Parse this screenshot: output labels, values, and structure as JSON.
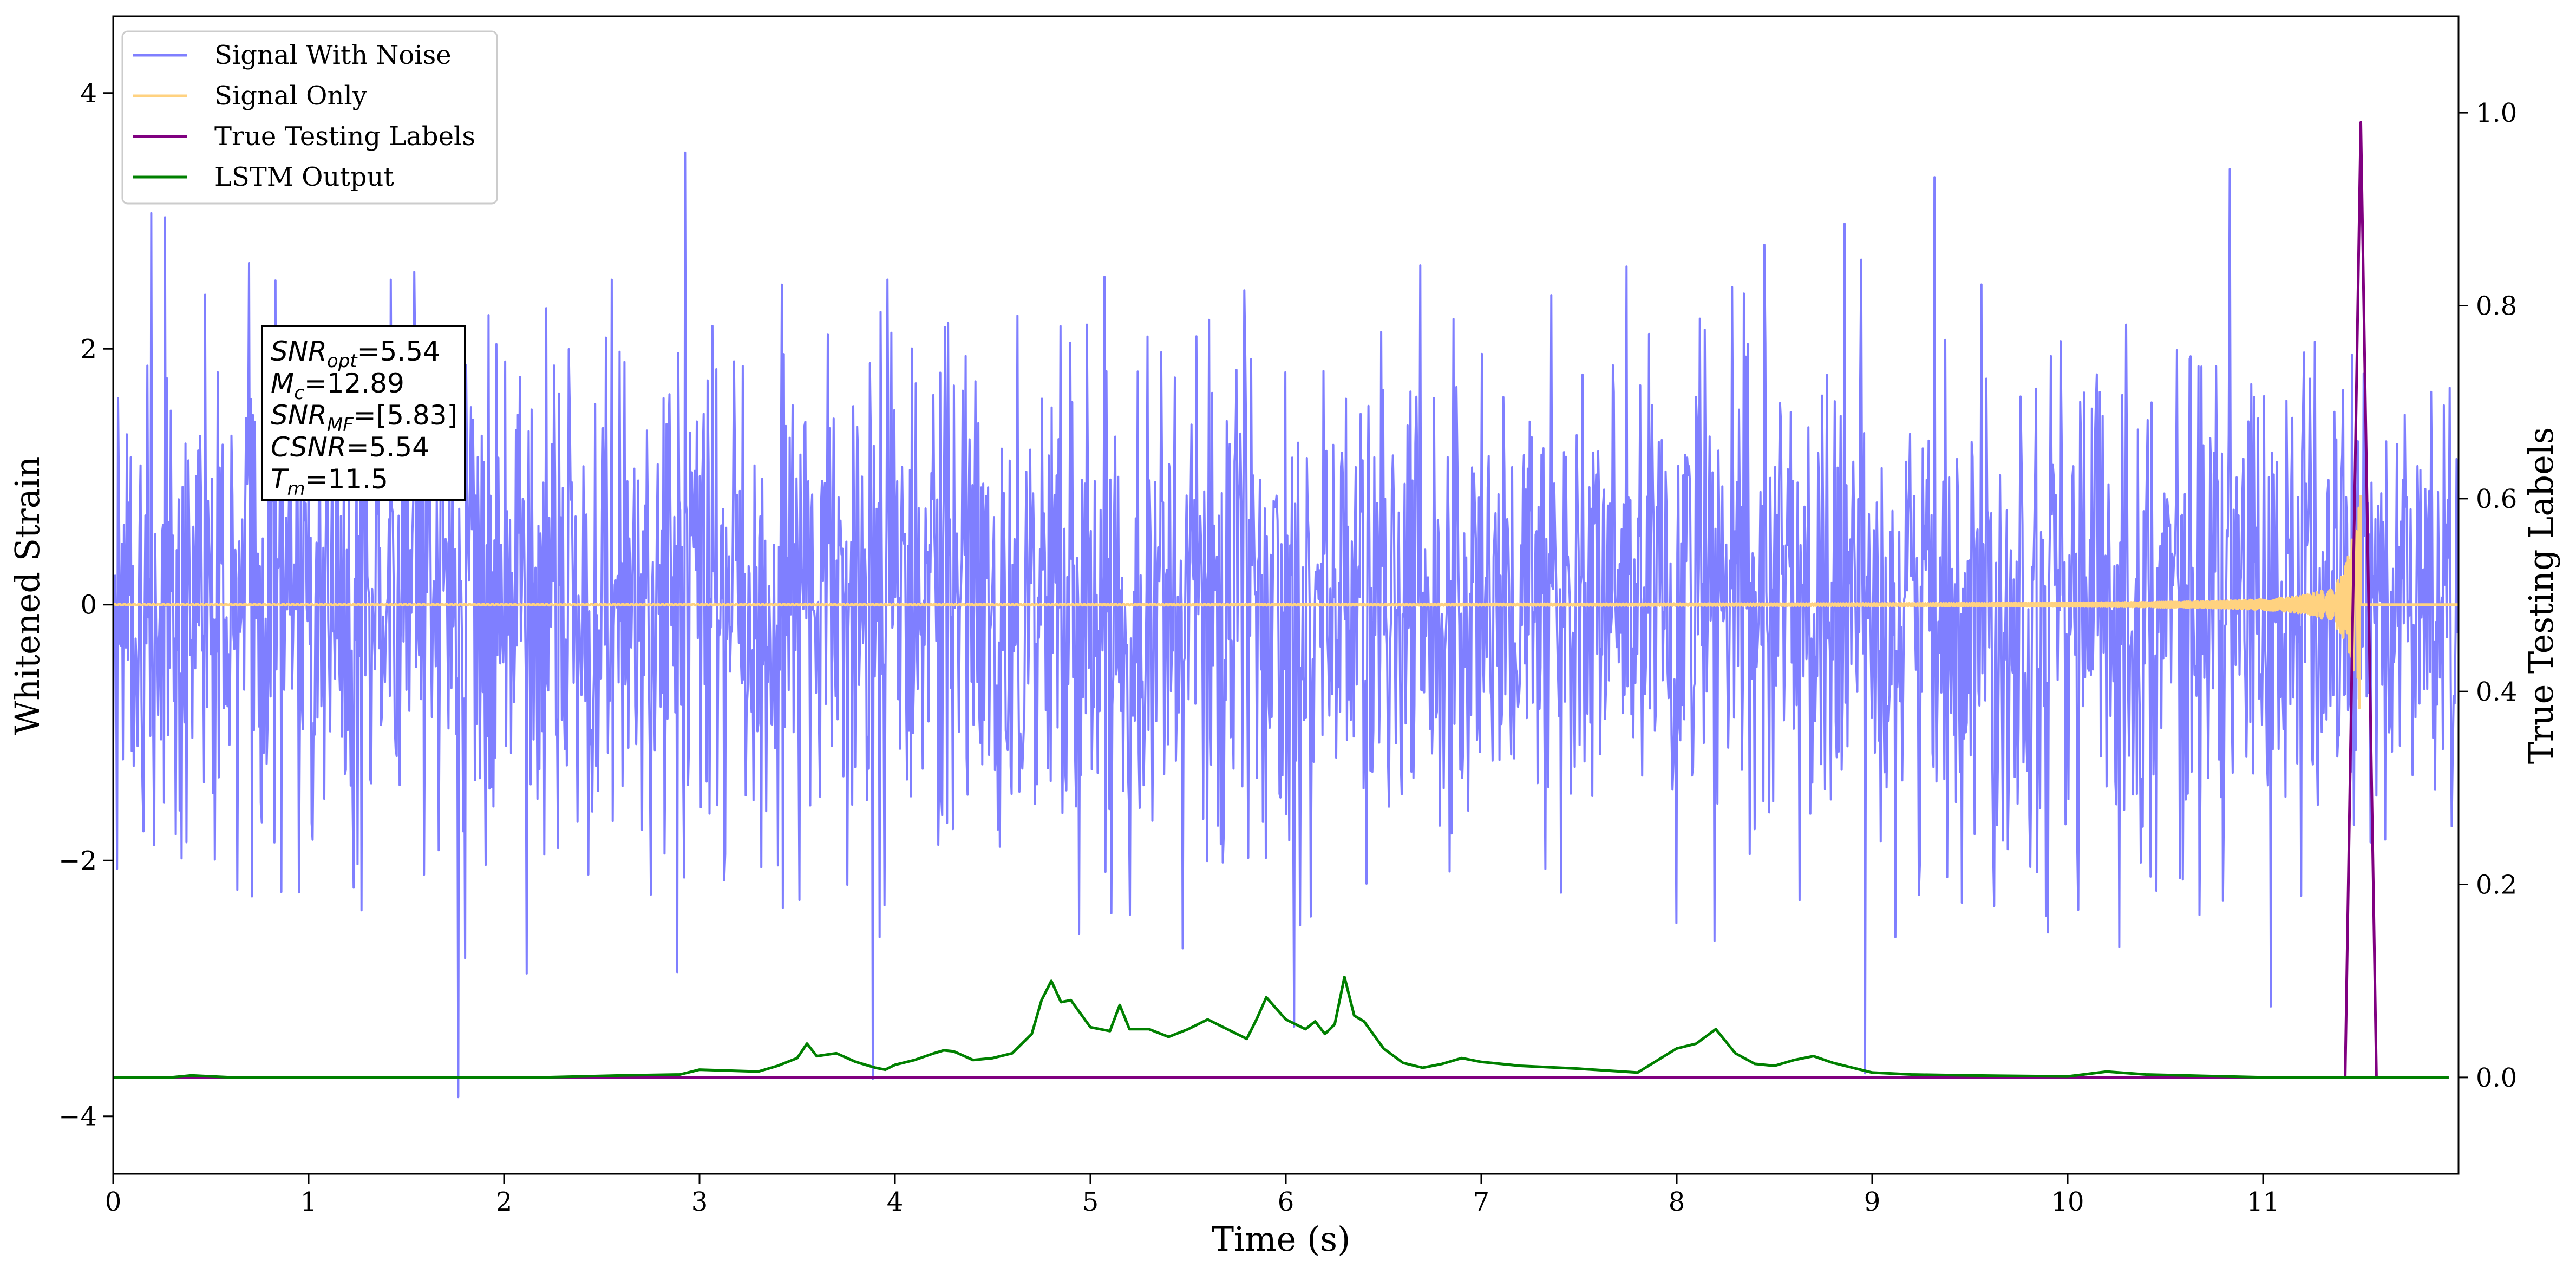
{
  "chart_data": {
    "type": "line",
    "xlabel": "Time (s)",
    "ylabel_left": "Whitened Strain",
    "ylabel_right": "True Testing Labels",
    "xlim": [
      0,
      12
    ],
    "ylim_left": [
      -4.45,
      4.6
    ],
    "ylim_right": [
      -0.1,
      1.1
    ],
    "x_ticks": [
      0,
      1,
      2,
      3,
      4,
      5,
      6,
      7,
      8,
      9,
      10,
      11
    ],
    "y_left_ticks": [
      4,
      2,
      0,
      -2,
      -4
    ],
    "y_left_tick_labels": [
      "4",
      "2",
      "0",
      "−2",
      "−4"
    ],
    "y_right_ticks": [
      1.0,
      0.8,
      0.6,
      0.4,
      0.2,
      0.0
    ],
    "y_right_tick_labels": [
      "1.0",
      "0.8",
      "0.6",
      "0.4",
      "0.2",
      "0.0"
    ],
    "grid": false,
    "legend_position": "top-left",
    "series": [
      {
        "name": "Signal With Noise",
        "color": "#7f7fff",
        "axis": "left",
        "style": "noise",
        "std": 1.0,
        "x_range": [
          0,
          12
        ],
        "n_points": 2400
      },
      {
        "name": "Signal Only",
        "color": "#ffd280",
        "axis": "left",
        "style": "chirp",
        "x_range": [
          0,
          11.5
        ],
        "peak_amplitude": 0.95
      },
      {
        "name": "True Testing Labels",
        "color": "#800080",
        "axis": "right",
        "x": [
          0,
          11.42,
          11.5,
          11.58,
          11.95
        ],
        "y": [
          0.0,
          0.0,
          0.99,
          0.0,
          0.0
        ]
      },
      {
        "name": "LSTM Output",
        "color": "#008000",
        "axis": "right",
        "x": [
          0,
          0.3,
          0.4,
          0.6,
          2.2,
          2.6,
          2.9,
          3.0,
          3.3,
          3.4,
          3.5,
          3.55,
          3.6,
          3.7,
          3.8,
          3.9,
          3.95,
          4.0,
          4.1,
          4.2,
          4.25,
          4.3,
          4.4,
          4.5,
          4.6,
          4.7,
          4.75,
          4.8,
          4.85,
          4.9,
          5.0,
          5.1,
          5.15,
          5.2,
          5.3,
          5.4,
          5.5,
          5.6,
          5.7,
          5.8,
          5.85,
          5.9,
          6.0,
          6.1,
          6.15,
          6.2,
          6.25,
          6.3,
          6.35,
          6.4,
          6.5,
          6.6,
          6.7,
          6.8,
          6.9,
          7.0,
          7.2,
          7.5,
          7.8,
          8.0,
          8.1,
          8.2,
          8.3,
          8.4,
          8.5,
          8.6,
          8.7,
          8.8,
          8.9,
          9.0,
          9.2,
          9.5,
          10.0,
          10.2,
          10.4,
          11.0,
          11.4,
          11.95
        ],
        "y": [
          0.0,
          0.0,
          0.002,
          0.0,
          0.0,
          0.002,
          0.003,
          0.008,
          0.006,
          0.012,
          0.02,
          0.035,
          0.022,
          0.025,
          0.016,
          0.01,
          0.008,
          0.013,
          0.018,
          0.025,
          0.028,
          0.027,
          0.018,
          0.02,
          0.025,
          0.045,
          0.08,
          0.1,
          0.078,
          0.08,
          0.052,
          0.048,
          0.075,
          0.05,
          0.05,
          0.042,
          0.05,
          0.06,
          0.05,
          0.04,
          0.06,
          0.083,
          0.06,
          0.05,
          0.058,
          0.045,
          0.055,
          0.104,
          0.064,
          0.058,
          0.03,
          0.015,
          0.01,
          0.014,
          0.02,
          0.016,
          0.012,
          0.009,
          0.005,
          0.03,
          0.035,
          0.05,
          0.025,
          0.014,
          0.012,
          0.018,
          0.022,
          0.015,
          0.01,
          0.005,
          0.003,
          0.002,
          0.001,
          0.006,
          0.003,
          0.0,
          0.0,
          0.0
        ]
      }
    ]
  },
  "info_box": {
    "lines": [
      {
        "base": "SNR",
        "sub": "opt",
        "value": "=5.54"
      },
      {
        "base": "M",
        "sub": "c",
        "value": "=12.89"
      },
      {
        "base": "SNR",
        "sub": "MF",
        "value": "=[5.83]"
      },
      {
        "base": "CSNR",
        "sub": "",
        "value": "=5.54"
      },
      {
        "base": "T",
        "sub": "m",
        "value": "=11.5"
      }
    ]
  }
}
